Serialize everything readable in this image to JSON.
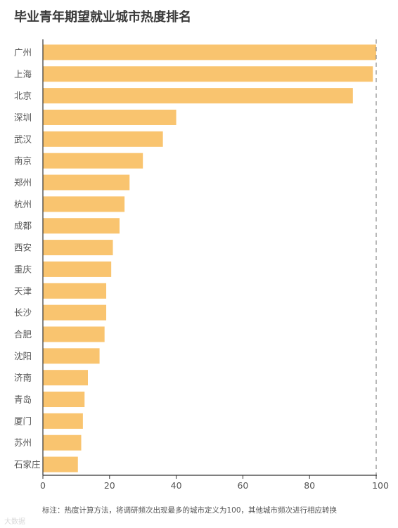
{
  "title": "毕业青年期望就业城市热度排名",
  "note": "标注：热度计算方法，将调研频次出现最多的城市定义为100，其他城市频次进行相应转换",
  "watermark": "大数据",
  "colors": {
    "bar": "#F9C46F",
    "axis": "#333333",
    "reference_line": "#888888",
    "label": "#555555"
  },
  "chart_data": {
    "type": "bar",
    "orientation": "horizontal",
    "title": "毕业青年期望就业城市热度排名",
    "categories": [
      "广州",
      "上海",
      "北京",
      "深圳",
      "武汉",
      "南京",
      "郑州",
      "杭州",
      "成都",
      "西安",
      "重庆",
      "天津",
      "长沙",
      "合肥",
      "沈阳",
      "济南",
      "青岛",
      "厦门",
      "苏州",
      "石家庄"
    ],
    "values": [
      100,
      99,
      93,
      40,
      36,
      30,
      26,
      24.5,
      23,
      21,
      20.5,
      19,
      19,
      18.5,
      17,
      13.5,
      12.5,
      12,
      11.5,
      10.5
    ],
    "xlim": [
      0,
      100
    ],
    "xticks": [
      0,
      20,
      40,
      60,
      80,
      100
    ],
    "reference_line": 100,
    "grid": false,
    "legend": "none"
  }
}
